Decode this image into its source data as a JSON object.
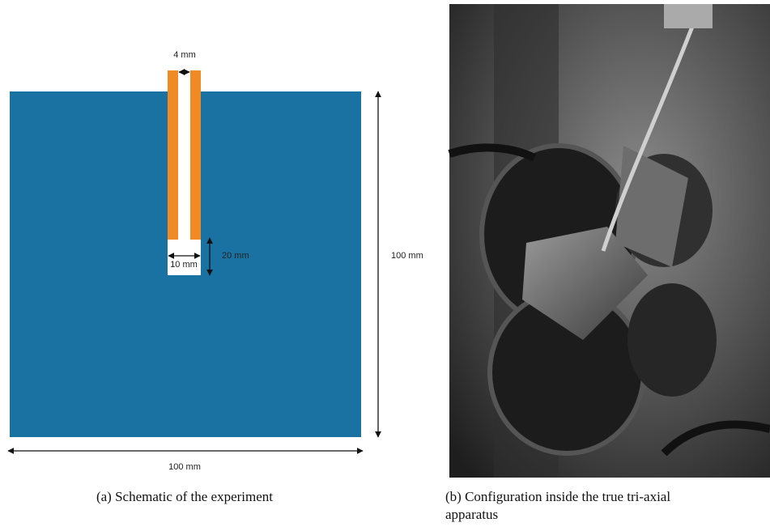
{
  "figure": {
    "panel_a": {
      "labels": {
        "slot_width": "4 mm",
        "notch_depth": "20 mm",
        "notch_width": "10 mm",
        "side_height": "100 mm",
        "side_width": "100 mm"
      },
      "caption": "(a) Schematic of the experiment"
    },
    "panel_b": {
      "caption_lines": [
        "(b) Configuration inside the true tri-axial",
        "apparatus"
      ]
    }
  }
}
